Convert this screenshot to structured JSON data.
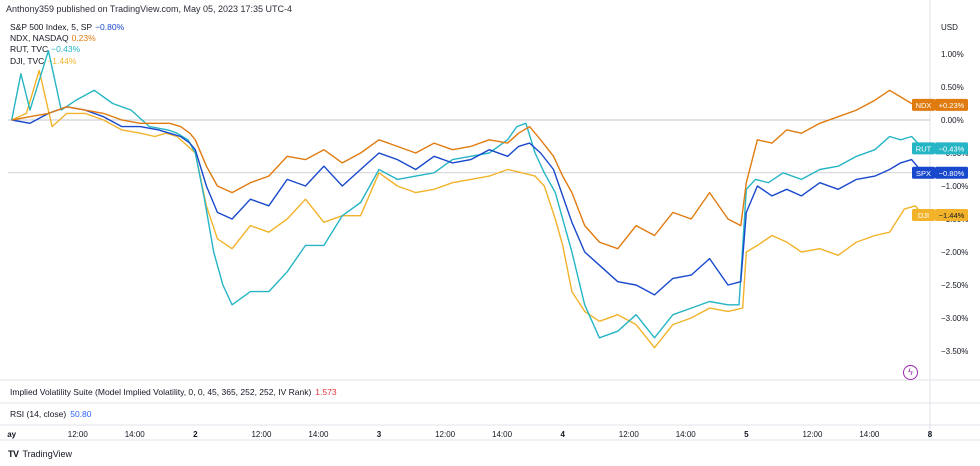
{
  "publisher": "Anthony359 published on TradingView.com, May 05, 2023 17:35 UTC-4",
  "legend": [
    {
      "label": "S&P 500 Index, 5, SP",
      "value": "−0.80%",
      "color": "#1848cc"
    },
    {
      "label": "NDX, NASDAQ",
      "value": "0.23%",
      "color": "#e07b10"
    },
    {
      "label": "RUT, TVC",
      "value": "−0.43%",
      "color": "#26b5c4"
    },
    {
      "label": "DJI, TVC",
      "value": "−1.44%",
      "color": "#f2b32a"
    }
  ],
  "indicators": {
    "ivs_label": "Implied Volatility Suite (Model Implied Volatility, 0, 0, 45, 365, 252, 252, IV Rank)",
    "ivs_value": "1.573",
    "rsi_label": "RSI (14, close)",
    "rsi_value": "50.80"
  },
  "brand": "TradingView",
  "brand_logo": "TV",
  "bolt_icon": "ϟ",
  "chart_data": {
    "type": "line",
    "y_unit": "USD",
    "ylim": [
      -3.75,
      1.25
    ],
    "y_ticks": [
      "1.00%",
      "0.50%",
      "0.00%",
      "−0.50%",
      "−1.00%",
      "−1.50%",
      "−2.00%",
      "−2.50%",
      "−3.00%",
      "−3.50%"
    ],
    "y_tick_values": [
      1.0,
      0.5,
      0.0,
      -0.5,
      -1.0,
      -1.5,
      -2.0,
      -2.5,
      -3.0,
      -3.5
    ],
    "x_ticks": [
      {
        "label": "ay",
        "t": 0
      },
      {
        "label": "12:00",
        "t": 0.36
      },
      {
        "label": "14:00",
        "t": 0.67
      },
      {
        "label": "2",
        "t": 1.0
      },
      {
        "label": "12:00",
        "t": 1.36
      },
      {
        "label": "14:00",
        "t": 1.67
      },
      {
        "label": "3",
        "t": 2.0
      },
      {
        "label": "12:00",
        "t": 2.36
      },
      {
        "label": "14:00",
        "t": 2.67
      },
      {
        "label": "4",
        "t": 3.0
      },
      {
        "label": "12:00",
        "t": 3.36
      },
      {
        "label": "14:00",
        "t": 3.67
      },
      {
        "label": "5",
        "t": 4.0
      },
      {
        "label": "12:00",
        "t": 4.36
      },
      {
        "label": "14:00",
        "t": 4.67
      },
      {
        "label": "8",
        "t": 5.0
      }
    ],
    "xlim": [
      -0.02,
      5.0
    ],
    "grid": false,
    "series": [
      {
        "name": "DJI",
        "color": "#f2b32a",
        "tag": "DJI",
        "tag_value": "−1.44%",
        "x": [
          0,
          0.08,
          0.15,
          0.22,
          0.3,
          0.4,
          0.5,
          0.6,
          0.7,
          0.78,
          0.84,
          0.9,
          0.96,
          1.0,
          1.06,
          1.12,
          1.2,
          1.3,
          1.4,
          1.5,
          1.6,
          1.7,
          1.8,
          1.9,
          2.0,
          2.1,
          2.2,
          2.3,
          2.4,
          2.5,
          2.6,
          2.7,
          2.78,
          2.85,
          2.9,
          2.96,
          3.0,
          3.05,
          3.12,
          3.2,
          3.3,
          3.4,
          3.5,
          3.6,
          3.7,
          3.8,
          3.9,
          3.98,
          4.0,
          4.06,
          4.14,
          4.22,
          4.3,
          4.4,
          4.5,
          4.6,
          4.7,
          4.78,
          4.86,
          4.92,
          4.96
        ],
        "y": [
          0.0,
          0.1,
          0.75,
          -0.1,
          0.1,
          0.1,
          0.0,
          -0.15,
          -0.2,
          -0.25,
          -0.2,
          -0.25,
          -0.4,
          -0.5,
          -1.3,
          -1.8,
          -1.95,
          -1.6,
          -1.7,
          -1.5,
          -1.2,
          -1.55,
          -1.45,
          -1.45,
          -0.8,
          -1.0,
          -1.1,
          -1.05,
          -0.95,
          -0.9,
          -0.85,
          -0.75,
          -0.8,
          -0.85,
          -1.0,
          -1.5,
          -1.9,
          -2.6,
          -2.9,
          -3.05,
          -2.95,
          -3.1,
          -3.45,
          -3.1,
          -3.0,
          -2.85,
          -2.9,
          -2.85,
          -2.0,
          -1.9,
          -1.75,
          -1.85,
          -2.0,
          -1.95,
          -2.05,
          -1.85,
          -1.75,
          -1.7,
          -1.35,
          -1.3,
          -1.44
        ]
      },
      {
        "name": "RUT",
        "color": "#26b5c4",
        "tag": "RUT",
        "tag_value": "−0.43%",
        "x": [
          0,
          0.05,
          0.1,
          0.15,
          0.2,
          0.27,
          0.35,
          0.45,
          0.55,
          0.65,
          0.75,
          0.85,
          0.9,
          0.96,
          1.0,
          1.05,
          1.1,
          1.15,
          1.2,
          1.3,
          1.4,
          1.5,
          1.6,
          1.7,
          1.8,
          1.9,
          2.0,
          2.1,
          2.2,
          2.3,
          2.4,
          2.5,
          2.6,
          2.7,
          2.75,
          2.8,
          2.85,
          2.9,
          2.96,
          3.0,
          3.05,
          3.12,
          3.2,
          3.3,
          3.4,
          3.5,
          3.6,
          3.7,
          3.8,
          3.9,
          3.96,
          4.0,
          4.05,
          4.12,
          4.2,
          4.3,
          4.4,
          4.5,
          4.6,
          4.7,
          4.78,
          4.84,
          4.9,
          4.96
        ],
        "y": [
          0.0,
          0.7,
          0.15,
          0.6,
          1.05,
          0.15,
          0.3,
          0.45,
          0.25,
          0.15,
          -0.1,
          -0.15,
          -0.2,
          -0.3,
          -0.5,
          -1.2,
          -2.0,
          -2.5,
          -2.8,
          -2.6,
          -2.6,
          -2.3,
          -1.9,
          -1.9,
          -1.45,
          -1.25,
          -0.75,
          -0.9,
          -0.85,
          -0.8,
          -0.6,
          -0.55,
          -0.5,
          -0.3,
          -0.1,
          -0.05,
          -0.5,
          -0.8,
          -1.1,
          -1.5,
          -2.0,
          -2.8,
          -3.3,
          -3.2,
          -2.95,
          -3.3,
          -2.95,
          -2.85,
          -2.75,
          -2.8,
          -2.8,
          -1.05,
          -0.9,
          -0.95,
          -0.8,
          -0.9,
          -0.75,
          -0.7,
          -0.55,
          -0.45,
          -0.25,
          -0.3,
          -0.25,
          -0.43
        ]
      },
      {
        "name": "SPX",
        "color": "#1848cc",
        "tag": "SPX",
        "tag_value": "−0.80%",
        "x": [
          0,
          0.1,
          0.2,
          0.3,
          0.4,
          0.5,
          0.6,
          0.7,
          0.8,
          0.86,
          0.92,
          0.97,
          1.0,
          1.06,
          1.12,
          1.2,
          1.3,
          1.4,
          1.5,
          1.6,
          1.7,
          1.8,
          1.9,
          2.0,
          2.1,
          2.2,
          2.3,
          2.4,
          2.5,
          2.6,
          2.7,
          2.76,
          2.82,
          2.88,
          2.95,
          3.0,
          3.05,
          3.12,
          3.2,
          3.3,
          3.4,
          3.5,
          3.6,
          3.7,
          3.8,
          3.9,
          3.97,
          4.0,
          4.06,
          4.14,
          4.22,
          4.3,
          4.4,
          4.5,
          4.6,
          4.7,
          4.78,
          4.84,
          4.9,
          4.96
        ],
        "y": [
          0.0,
          -0.05,
          0.1,
          0.2,
          0.15,
          0.05,
          -0.1,
          -0.1,
          -0.15,
          -0.2,
          -0.25,
          -0.35,
          -0.45,
          -1.0,
          -1.4,
          -1.5,
          -1.2,
          -1.3,
          -0.9,
          -1.0,
          -0.7,
          -1.0,
          -0.75,
          -0.5,
          -0.6,
          -0.75,
          -0.55,
          -0.65,
          -0.6,
          -0.45,
          -0.55,
          -0.4,
          -0.35,
          -0.5,
          -0.75,
          -1.15,
          -1.55,
          -2.0,
          -2.2,
          -2.45,
          -2.5,
          -2.65,
          -2.4,
          -2.35,
          -2.1,
          -2.5,
          -2.45,
          -1.4,
          -1.0,
          -1.15,
          -1.05,
          -1.15,
          -0.95,
          -1.05,
          -0.9,
          -0.85,
          -0.75,
          -0.65,
          -0.6,
          -0.8
        ]
      },
      {
        "name": "NDX",
        "color": "#e07b10",
        "tag": "NDX",
        "tag_value": "+0.23%",
        "x": [
          0,
          0.1,
          0.2,
          0.3,
          0.4,
          0.5,
          0.6,
          0.7,
          0.8,
          0.86,
          0.92,
          0.97,
          1.0,
          1.06,
          1.12,
          1.2,
          1.3,
          1.4,
          1.5,
          1.6,
          1.7,
          1.8,
          1.9,
          2.0,
          2.1,
          2.2,
          2.3,
          2.4,
          2.5,
          2.6,
          2.7,
          2.76,
          2.82,
          2.88,
          2.95,
          3.0,
          3.05,
          3.12,
          3.2,
          3.3,
          3.4,
          3.5,
          3.6,
          3.7,
          3.8,
          3.9,
          3.97,
          4.0,
          4.06,
          4.14,
          4.22,
          4.3,
          4.4,
          4.5,
          4.6,
          4.7,
          4.78,
          4.84,
          4.9,
          4.96
        ],
        "y": [
          0.0,
          0.05,
          0.1,
          0.2,
          0.15,
          0.1,
          0.0,
          -0.05,
          -0.05,
          -0.05,
          -0.1,
          -0.2,
          -0.3,
          -0.7,
          -1.0,
          -1.1,
          -0.95,
          -0.85,
          -0.55,
          -0.6,
          -0.45,
          -0.65,
          -0.5,
          -0.3,
          -0.4,
          -0.5,
          -0.35,
          -0.45,
          -0.4,
          -0.3,
          -0.35,
          -0.2,
          -0.1,
          -0.3,
          -0.55,
          -0.85,
          -1.1,
          -1.6,
          -1.85,
          -1.95,
          -1.6,
          -1.75,
          -1.4,
          -1.5,
          -1.1,
          -1.5,
          -1.6,
          -0.95,
          -0.3,
          -0.35,
          -0.15,
          -0.2,
          -0.05,
          0.05,
          0.15,
          0.3,
          0.45,
          0.35,
          0.25,
          0.23
        ]
      }
    ]
  }
}
